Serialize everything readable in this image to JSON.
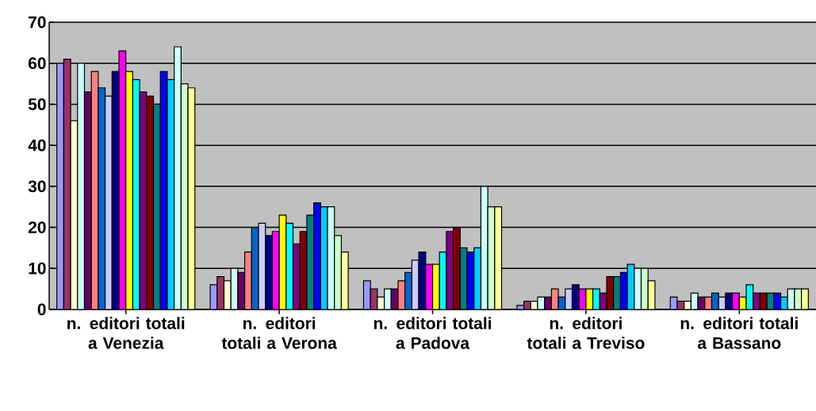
{
  "chart_data": {
    "type": "bar",
    "categories": [
      "n. editori totali a Venezia",
      "n. editori totali a Verona",
      "n. editori totali a Padova",
      "n. editori totali a Treviso",
      "n. editori totali a Bassano"
    ],
    "series": [
      {
        "color": "#9999ff",
        "values": [
          60,
          6,
          7,
          1,
          3
        ]
      },
      {
        "color": "#993366",
        "values": [
          61,
          8,
          5,
          2,
          2
        ]
      },
      {
        "color": "#ffffcc",
        "values": [
          46,
          7,
          3,
          2,
          2
        ]
      },
      {
        "color": "#ccffff",
        "values": [
          60,
          10,
          5,
          3,
          4
        ]
      },
      {
        "color": "#660066",
        "values": [
          53,
          9,
          5,
          3,
          3
        ]
      },
      {
        "color": "#ff8080",
        "values": [
          58,
          14,
          7,
          5,
          3
        ]
      },
      {
        "color": "#0066cc",
        "values": [
          54,
          20,
          9,
          3,
          4
        ]
      },
      {
        "color": "#ccccff",
        "values": [
          52,
          21,
          12,
          5,
          3
        ]
      },
      {
        "color": "#000080",
        "values": [
          58,
          18,
          14,
          6,
          4
        ]
      },
      {
        "color": "#ff00ff",
        "values": [
          63,
          19,
          11,
          5,
          4
        ]
      },
      {
        "color": "#ffff00",
        "values": [
          58,
          23,
          11,
          5,
          3
        ]
      },
      {
        "color": "#00ffff",
        "values": [
          56,
          21,
          14,
          5,
          6
        ]
      },
      {
        "color": "#800080",
        "values": [
          53,
          16,
          19,
          4,
          4
        ]
      },
      {
        "color": "#800000",
        "values": [
          52,
          19,
          20,
          8,
          4
        ]
      },
      {
        "color": "#008080",
        "values": [
          50,
          23,
          15,
          8,
          4
        ]
      },
      {
        "color": "#0000ff",
        "values": [
          58,
          26,
          14,
          9,
          4
        ]
      },
      {
        "color": "#00ccff",
        "values": [
          56,
          25,
          15,
          11,
          3
        ]
      },
      {
        "color": "#ccffff",
        "values": [
          64,
          25,
          30,
          10,
          5
        ]
      },
      {
        "color": "#ccffcc",
        "values": [
          55,
          18,
          25,
          10,
          5
        ]
      },
      {
        "color": "#ffff99",
        "values": [
          54,
          14,
          25,
          7,
          5
        ]
      }
    ],
    "ylim": [
      0,
      70
    ],
    "yticks": [
      0,
      10,
      20,
      30,
      40,
      50,
      60,
      70
    ],
    "grid": "y"
  }
}
